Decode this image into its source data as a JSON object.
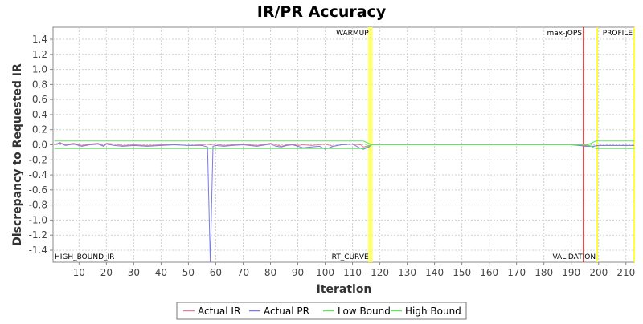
{
  "chart_data": {
    "type": "line",
    "title": "IR/PR Accuracy",
    "xlabel": "Iteration",
    "ylabel": "Discrepancy to Requested IR",
    "xlim": [
      0.5,
      213
    ],
    "ylim": [
      -1.56,
      1.56
    ],
    "xticks": [
      10,
      20,
      30,
      40,
      50,
      60,
      70,
      80,
      90,
      100,
      110,
      120,
      130,
      140,
      150,
      160,
      170,
      180,
      190,
      200,
      210
    ],
    "yticks": [
      -1.4,
      -1.2,
      -1.0,
      -0.8,
      -0.6,
      -0.4,
      -0.2,
      0.0,
      0.2,
      0.4,
      0.6,
      0.8,
      1.0,
      1.2,
      1.4
    ],
    "ytick_labels": [
      "-1.4",
      "-1.2",
      "-1.0",
      "-0.8",
      "-0.6",
      "-0.4",
      "-0.2",
      "0.0",
      "0.2",
      "0.4",
      "0.6",
      "0.8",
      "1.0",
      "1.2",
      "1.4"
    ],
    "grid": true,
    "legend_position": "bottom",
    "markers": [
      {
        "label": "WARMUP",
        "x": 116.5,
        "color": "#ffff66",
        "label_pos": "top",
        "band": true
      },
      {
        "label": "RT_CURVE",
        "x": 116.5,
        "color": "#ffff66",
        "label_pos": "bottom",
        "band": false
      },
      {
        "label": "max-jOPS",
        "x": 194.5,
        "color": "#cc0000",
        "label_pos": "top",
        "band": false
      },
      {
        "label": "VALIDATION",
        "x": 199.5,
        "color": "#ffff00",
        "label_pos": "bottom",
        "band": false
      },
      {
        "label": "PROFILE",
        "x": 213,
        "color": "#ffff00",
        "label_pos": "top",
        "band": false
      }
    ],
    "corner_label": "HIGH_BOUND_IR",
    "series": [
      {
        "name": "Actual IR",
        "color": "#e87c9a",
        "x": [
          1,
          3,
          5,
          8,
          11,
          14,
          17,
          19,
          20,
          23,
          26,
          30,
          35,
          40,
          45,
          50,
          55,
          57,
          58,
          60,
          63,
          66,
          70,
          75,
          80,
          82,
          84,
          86,
          88,
          90,
          92,
          95,
          98,
          100,
          103,
          106,
          110,
          113,
          114,
          116,
          117,
          130,
          150,
          170,
          185,
          190,
          193,
          195,
          198,
          200,
          205,
          210,
          213
        ],
        "y": [
          0.0,
          0.03,
          0.0,
          0.02,
          -0.01,
          0.01,
          0.02,
          -0.01,
          0.02,
          0.01,
          -0.01,
          0.0,
          -0.01,
          0.0,
          0.0,
          -0.01,
          0.0,
          0.01,
          0.0,
          0.01,
          -0.01,
          0.0,
          0.01,
          -0.01,
          0.02,
          0.0,
          -0.02,
          0.0,
          0.01,
          -0.01,
          0.0,
          -0.01,
          0.0,
          0.01,
          -0.02,
          0.0,
          0.01,
          0.0,
          -0.03,
          -0.01,
          0.0,
          0.0,
          0.0,
          0.0,
          0.0,
          0.0,
          -0.01,
          -0.01,
          -0.02,
          -0.01,
          -0.01,
          -0.01,
          -0.01
        ]
      },
      {
        "name": "Actual PR",
        "color": "#7a7ae6",
        "x": [
          1,
          3,
          5,
          8,
          11,
          14,
          17,
          19,
          20,
          23,
          26,
          30,
          35,
          40,
          45,
          50,
          55,
          57,
          58,
          59,
          60,
          63,
          66,
          70,
          75,
          80,
          82,
          84,
          86,
          88,
          90,
          92,
          95,
          98,
          100,
          103,
          106,
          110,
          112,
          113,
          114,
          116,
          117,
          130,
          150,
          170,
          185,
          190,
          193,
          195,
          198,
          200,
          205,
          210,
          213
        ],
        "y": [
          0.0,
          0.02,
          -0.01,
          0.01,
          -0.02,
          0.0,
          0.01,
          -0.02,
          0.01,
          -0.01,
          -0.02,
          -0.01,
          -0.02,
          -0.01,
          0.0,
          -0.01,
          -0.01,
          -0.03,
          -1.56,
          -0.02,
          -0.01,
          -0.02,
          -0.01,
          0.0,
          -0.02,
          0.01,
          -0.02,
          -0.03,
          -0.01,
          0.0,
          -0.02,
          -0.04,
          -0.03,
          -0.02,
          -0.06,
          -0.02,
          0.0,
          0.01,
          -0.03,
          -0.05,
          -0.06,
          -0.03,
          0.0,
          0.0,
          0.0,
          0.0,
          0.0,
          0.0,
          -0.01,
          -0.02,
          -0.02,
          -0.01,
          -0.01,
          -0.01,
          -0.01
        ]
      },
      {
        "name": "Low Bound",
        "color": "#55ee55",
        "x": [
          1,
          114,
          117,
          196,
          199,
          213
        ],
        "y": [
          -0.05,
          -0.05,
          0.0,
          0.0,
          -0.05,
          -0.05
        ]
      },
      {
        "name": "High Bound",
        "color": "#55ee55",
        "x": [
          1,
          114,
          117,
          196,
          199,
          213
        ],
        "y": [
          0.05,
          0.05,
          0.0,
          0.0,
          0.05,
          0.05
        ]
      }
    ]
  }
}
